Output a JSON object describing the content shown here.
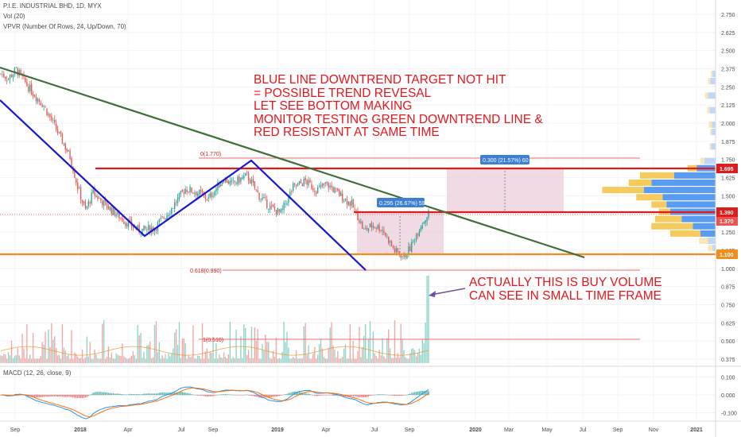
{
  "header": {
    "symbol_line": "P.I.E. INDUSTRIAL BHD, 1D, MYX",
    "vol_line": "Vol (20)",
    "vpvr_line": "VPVR (Number Of Rows, 24, Up/Down, 70)",
    "macd_line": "MACD (12, 26, close, 9)"
  },
  "annotations": {
    "main_note": [
      "BLUE LINE DOWNTREND TARGET NOT HIT",
      "= POSSIBLE TREND REVESAL",
      "LET SEE BOTTOM MAKING",
      "MONITOR TESTING GREEN DOWNTREND LINE &",
      "RED RESISTANT AT SAME TIME"
    ],
    "volume_note": [
      "ACTUALLY THIS IS BUY VOLUME",
      "CAN SEE IN SMALL TIME FRAME"
    ],
    "fib_top": "0(1.770)",
    "fib_618": "0.618(0.990)",
    "fib_bottom": "1(0.510)",
    "measure_1": "0.295 (26.67%) 59",
    "measure_2": "0.300 (21.57%) 60"
  },
  "price_labels": {
    "resistance": "1.695",
    "current_a": "1.390",
    "current_b": "1.370",
    "support": "1.100"
  },
  "colors": {
    "up": "#26a69a",
    "down": "#ef5350",
    "up_vol": "#8fd3c9",
    "down_vol": "#f3a6a4",
    "blue_line": "#1515d6",
    "green_line": "#3f6e3a",
    "red_line": "#e01b1b",
    "orange_line": "#f28c1a",
    "annotation_text": "#e8161b",
    "measure_fill": "#e8c7d6",
    "macd_line": "#2196f3",
    "signal_line": "#ff6d00",
    "vpvr_up": "#3d8bf1",
    "vpvr_down": "#f4c242",
    "vpvr_up_far": "#b5d0f5",
    "vpvr_down_far": "#f8e3aa"
  },
  "chart_data": {
    "type": "candlestick",
    "x_axis": {
      "tick_labels": [
        "Sep",
        "2018",
        "Apr",
        "Jul",
        "Sep",
        "2019",
        "Apr",
        "Jul",
        "Sep",
        "2020",
        "Mar",
        "May",
        "Jul",
        "Sep",
        "Nov",
        "2021"
      ]
    },
    "price_axis": {
      "ylim": [
        0.34,
        2.82
      ],
      "ticks": [
        "0.375",
        "0.500",
        "0.625",
        "0.750",
        "0.875",
        "1.000",
        "1.125",
        "1.250",
        "1.375",
        "1.500",
        "1.625",
        "1.750",
        "1.875",
        "2.000",
        "2.125",
        "2.250",
        "2.375",
        "2.500",
        "2.625",
        "2.750"
      ]
    },
    "macd_axis": {
      "ylim": [
        -0.15,
        0.15
      ],
      "ticks": [
        "0.100",
        "0.000",
        "-0.100"
      ]
    },
    "price_keypoints": [
      [
        0,
        2.34
      ],
      [
        5,
        2.31
      ],
      [
        10,
        2.37
      ],
      [
        20,
        2.22
      ],
      [
        28,
        2.12
      ],
      [
        35,
        1.98
      ],
      [
        45,
        1.77
      ],
      [
        50,
        1.56
      ],
      [
        55,
        1.4
      ],
      [
        60,
        1.52
      ],
      [
        70,
        1.42
      ],
      [
        80,
        1.33
      ],
      [
        90,
        1.26
      ],
      [
        100,
        1.28
      ],
      [
        110,
        1.4
      ],
      [
        120,
        1.55
      ],
      [
        128,
        1.52
      ],
      [
        135,
        1.48
      ],
      [
        145,
        1.62
      ],
      [
        150,
        1.58
      ],
      [
        160,
        1.64
      ],
      [
        168,
        1.5
      ],
      [
        175,
        1.42
      ],
      [
        182,
        1.38
      ],
      [
        190,
        1.56
      ],
      [
        198,
        1.6
      ],
      [
        205,
        1.54
      ],
      [
        212,
        1.58
      ],
      [
        220,
        1.51
      ],
      [
        228,
        1.44
      ],
      [
        232,
        1.36
      ],
      [
        236,
        1.26
      ],
      [
        242,
        1.3
      ],
      [
        248,
        1.27
      ],
      [
        256,
        1.12
      ],
      [
        262,
        1.08
      ],
      [
        266,
        1.14
      ],
      [
        272,
        1.28
      ],
      [
        278,
        1.38
      ]
    ],
    "volume_spike_at_end": 1.0,
    "levels": [
      {
        "name": "fib 0",
        "value": 1.77
      },
      {
        "name": "resistance",
        "value": 1.695
      },
      {
        "name": "current",
        "value": 1.39
      },
      {
        "name": "current close",
        "value": 1.37
      },
      {
        "name": "support",
        "value": 1.1
      },
      {
        "name": "fib 0.618",
        "value": 0.99
      },
      {
        "name": "fib 1",
        "value": 0.51
      }
    ],
    "trendlines": [
      {
        "name": "green downtrend",
        "from": [
          "2017-08",
          2.43
        ],
        "to": [
          "2020-07",
          1.07
        ]
      },
      {
        "name": "blue channel 1",
        "from": [
          "2017-08",
          2.2
        ],
        "to": [
          "2018-06",
          1.22
        ]
      },
      {
        "name": "blue channel 2",
        "from": [
          "2018-06",
          1.22
        ],
        "to": [
          "2018-11",
          1.76
        ]
      },
      {
        "name": "blue channel 3",
        "from": [
          "2018-11",
          1.76
        ],
        "to": [
          "2019-07",
          1.0
        ]
      }
    ]
  }
}
